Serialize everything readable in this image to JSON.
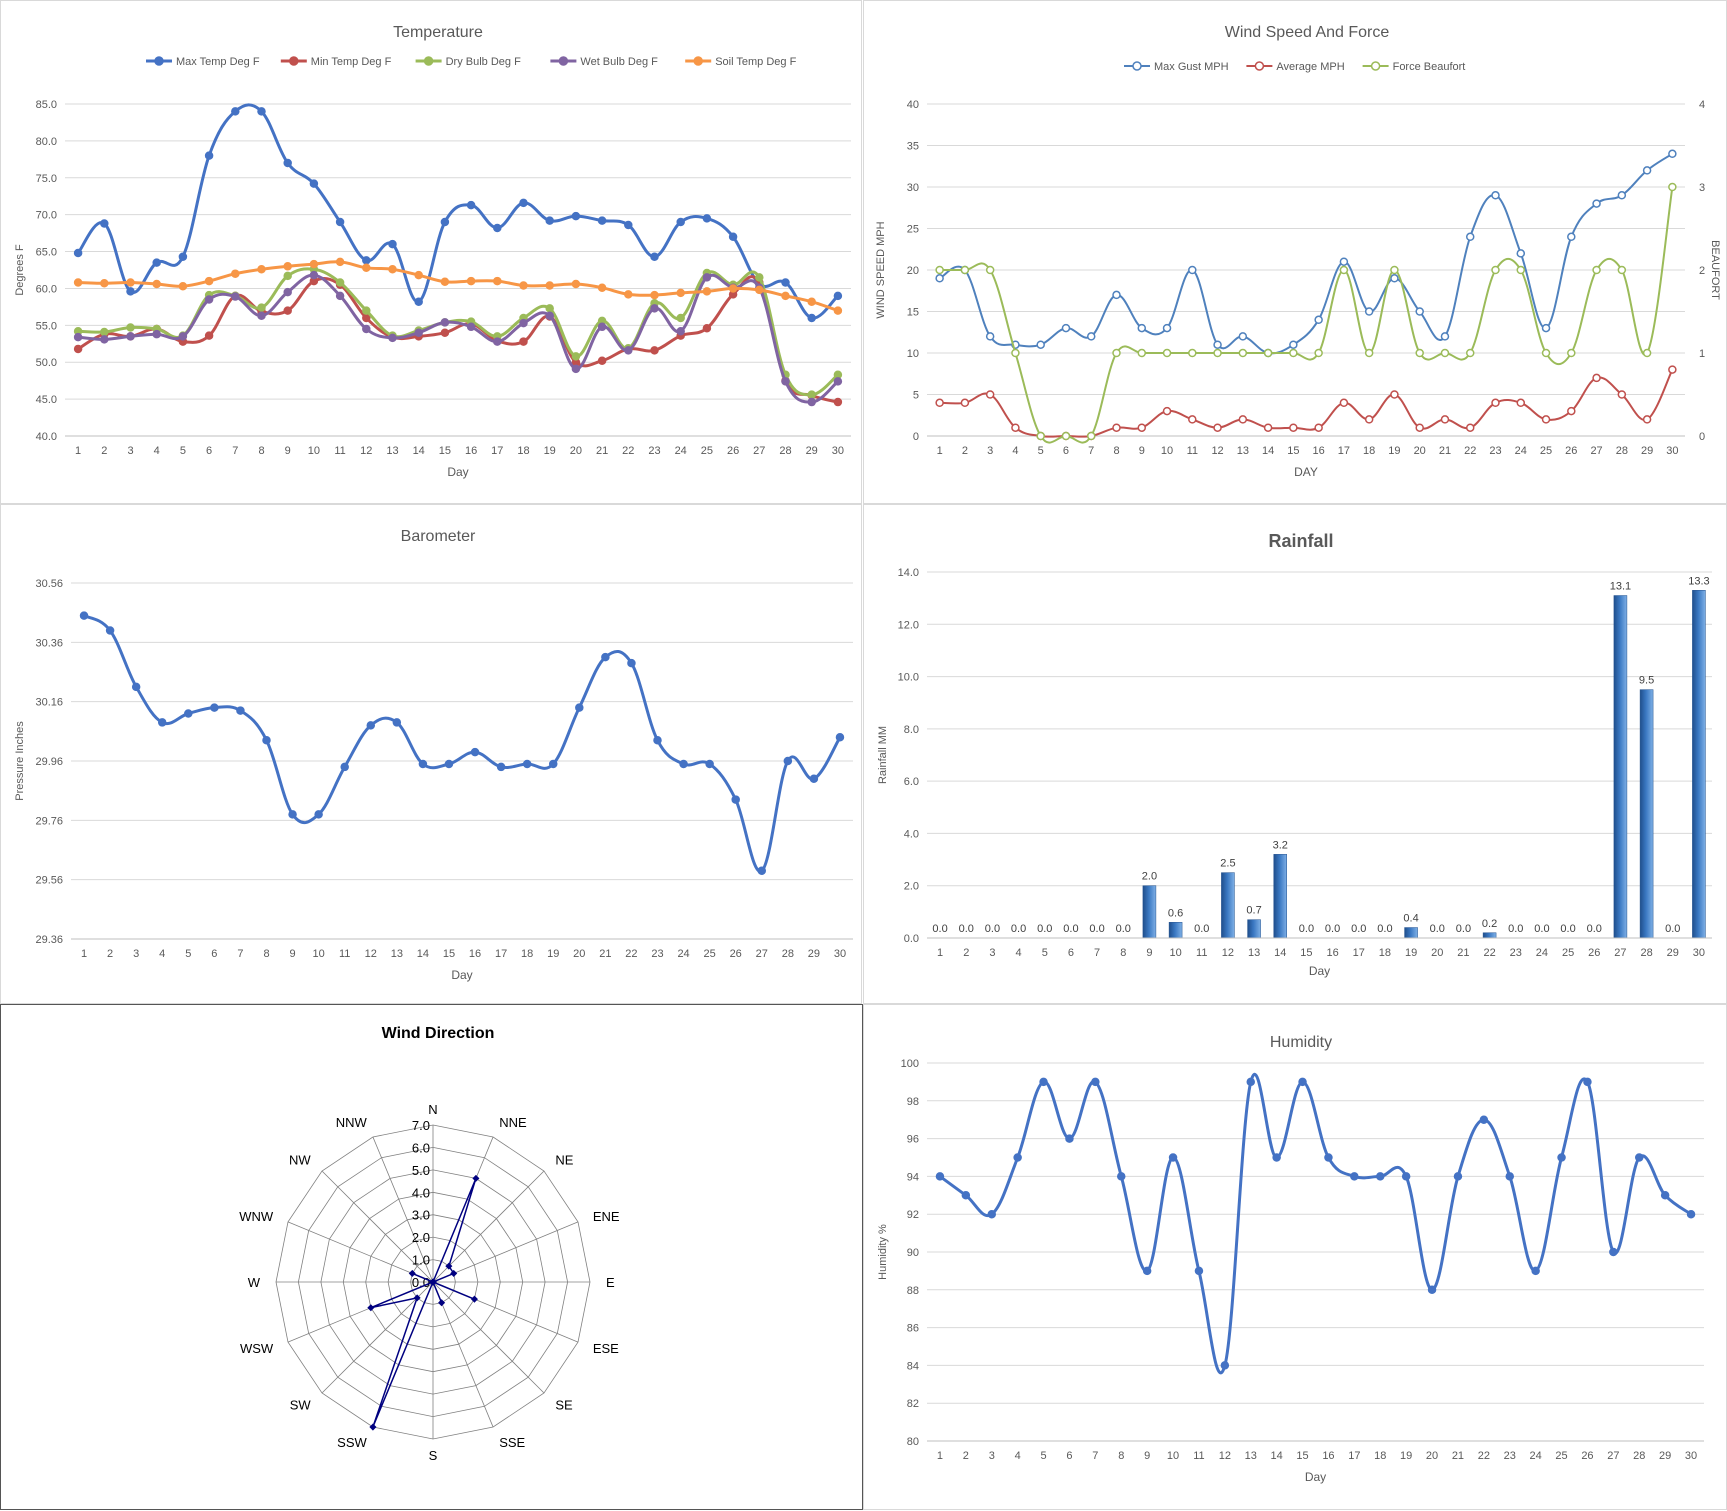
{
  "chart_data": [
    {
      "id": "temp",
      "type": "line",
      "title": "Temperature",
      "xlabel": "Day",
      "ylabel": "Degrees F",
      "ylim": [
        40,
        85
      ],
      "yticks": [
        "40.0",
        "45.0",
        "50.0",
        "55.0",
        "60.0",
        "65.0",
        "70.0",
        "75.0",
        "80.0",
        "85.0"
      ],
      "categories": [
        "1",
        "2",
        "3",
        "4",
        "5",
        "6",
        "7",
        "8",
        "9",
        "10",
        "11",
        "12",
        "13",
        "14",
        "15",
        "16",
        "17",
        "18",
        "19",
        "20",
        "21",
        "22",
        "23",
        "24",
        "25",
        "26",
        "27",
        "28",
        "29",
        "30"
      ],
      "grid": true,
      "legend": "top",
      "series": [
        {
          "name": "Max Temp Deg F",
          "color": "#4472c4",
          "values": [
            64.8,
            68.8,
            59.6,
            63.5,
            64.3,
            78,
            84,
            84,
            77,
            74.2,
            69,
            63.8,
            66,
            58.2,
            69,
            71.3,
            68.2,
            71.6,
            69.2,
            69.8,
            69.2,
            68.6,
            64.3,
            69,
            69.5,
            67,
            60.6,
            60.8,
            56,
            59
          ]
        },
        {
          "name": "Min Temp Deg F",
          "color": "#c0504d",
          "values": [
            51.8,
            53.8,
            53.5,
            54.5,
            52.8,
            53.6,
            59,
            56.9,
            57,
            61,
            60.5,
            56,
            53.4,
            53.5,
            54,
            55.2,
            52.9,
            52.8,
            56.2,
            50,
            50.2,
            51.8,
            51.6,
            53.6,
            54.6,
            59.2,
            60.8,
            47.5,
            45.5,
            44.6
          ]
        },
        {
          "name": "Dry Bulb Deg F",
          "color": "#9bbb59",
          "values": [
            54.2,
            54.1,
            54.7,
            54.5,
            53.6,
            59.1,
            59,
            57.4,
            61.7,
            62.6,
            60.8,
            57,
            53.6,
            54.3,
            55.4,
            55.5,
            53.5,
            56,
            57.3,
            50.8,
            55.6,
            51.9,
            58,
            56,
            62.1,
            60.5,
            61.5,
            48.3,
            45.6,
            48.3
          ]
        },
        {
          "name": "Wet Bulb Deg F",
          "color": "#8064a2",
          "values": [
            53.4,
            53.1,
            53.5,
            53.8,
            53.5,
            58.5,
            58.9,
            56.3,
            59.5,
            61.8,
            59,
            54.5,
            53.3,
            54,
            55.4,
            54.8,
            52.8,
            55.3,
            56.3,
            49.1,
            54.8,
            51.6,
            57.3,
            54.2,
            61.5,
            60.1,
            60.1,
            47.4,
            44.6,
            47.4
          ]
        },
        {
          "name": "Soil Temp Deg F",
          "color": "#f79646",
          "values": [
            60.8,
            60.7,
            60.8,
            60.6,
            60.3,
            61,
            62,
            62.6,
            63,
            63.3,
            63.6,
            62.8,
            62.6,
            61.8,
            60.9,
            61,
            61,
            60.4,
            60.4,
            60.6,
            60.1,
            59.2,
            59.1,
            59.4,
            59.6,
            60,
            59.8,
            59,
            58.2,
            57
          ]
        }
      ]
    },
    {
      "id": "wind",
      "type": "line",
      "title": "Wind Speed And Force",
      "xlabel": "DAY",
      "ylabel": "WIND SPEED MPH",
      "y2label": "BEAUFORT",
      "ylim": [
        0,
        40
      ],
      "y2lim": [
        0,
        4
      ],
      "yticks": [
        "0",
        "5",
        "10",
        "15",
        "20",
        "25",
        "30",
        "35",
        "40"
      ],
      "y2ticks": [
        "0",
        "1",
        "2",
        "3",
        "4"
      ],
      "categories": [
        "1",
        "2",
        "3",
        "4",
        "5",
        "6",
        "7",
        "8",
        "9",
        "10",
        "11",
        "12",
        "13",
        "14",
        "15",
        "16",
        "17",
        "18",
        "19",
        "20",
        "21",
        "22",
        "23",
        "24",
        "25",
        "26",
        "27",
        "28",
        "29",
        "30"
      ],
      "grid": true,
      "legend": "top",
      "series": [
        {
          "name": "Max Gust MPH",
          "color": "#4f81bd",
          "axis": "left",
          "values": [
            19,
            20,
            12,
            11,
            11,
            13,
            12,
            17,
            13,
            13,
            20,
            11,
            12,
            10,
            11,
            14,
            21,
            15,
            19,
            15,
            12,
            24,
            29,
            22,
            13,
            24,
            28,
            29,
            32,
            34
          ]
        },
        {
          "name": "Average MPH",
          "color": "#c0504d",
          "axis": "left",
          "values": [
            4,
            4,
            5,
            1,
            0,
            0,
            0,
            1,
            1,
            3,
            2,
            1,
            2,
            1,
            1,
            1,
            4,
            2,
            5,
            1,
            2,
            1,
            4,
            4,
            2,
            3,
            7,
            5,
            2,
            8
          ]
        },
        {
          "name": "Force Beaufort",
          "color": "#9bbb59",
          "axis": "right",
          "values": [
            2,
            2,
            2,
            1,
            0,
            0,
            0,
            1,
            1,
            1,
            1,
            1,
            1,
            1,
            1,
            1,
            2,
            1,
            2,
            1,
            1,
            1,
            2,
            2,
            1,
            1,
            2,
            2,
            1,
            3
          ]
        }
      ]
    },
    {
      "id": "baro",
      "type": "line",
      "title": "Barometer",
      "xlabel": "Day",
      "ylabel": "Pressure Inches",
      "ylim": [
        29.36,
        30.56
      ],
      "yticks": [
        "29.36",
        "29.56",
        "29.76",
        "29.96",
        "30.16",
        "30.36",
        "30.56"
      ],
      "categories": [
        "1",
        "2",
        "3",
        "4",
        "5",
        "6",
        "7",
        "8",
        "9",
        "10",
        "11",
        "12",
        "13",
        "14",
        "15",
        "16",
        "17",
        "18",
        "19",
        "20",
        "21",
        "22",
        "23",
        "24",
        "25",
        "26",
        "27",
        "28",
        "29",
        "30"
      ],
      "grid": true,
      "series": [
        {
          "name": "",
          "color": "#4472c4",
          "values": [
            30.45,
            30.4,
            30.21,
            30.09,
            30.12,
            30.14,
            30.13,
            30.03,
            29.78,
            29.78,
            29.94,
            30.08,
            30.09,
            29.95,
            29.95,
            29.99,
            29.94,
            29.95,
            29.95,
            30.14,
            30.31,
            30.29,
            30.03,
            29.95,
            29.95,
            29.83,
            29.59,
            29.96,
            29.9,
            30.04
          ]
        }
      ]
    },
    {
      "id": "rain",
      "type": "bar",
      "title": "Rainfall",
      "xlabel": "Day",
      "ylabel": "Rainfall MM",
      "ylim": [
        0,
        14
      ],
      "yticks": [
        "0.0",
        "2.0",
        "4.0",
        "6.0",
        "8.0",
        "10.0",
        "12.0",
        "14.0"
      ],
      "categories": [
        "1",
        "2",
        "3",
        "4",
        "5",
        "6",
        "7",
        "8",
        "9",
        "10",
        "11",
        "12",
        "13",
        "14",
        "15",
        "16",
        "17",
        "18",
        "19",
        "20",
        "21",
        "22",
        "23",
        "24",
        "25",
        "26",
        "27",
        "28",
        "29",
        "30"
      ],
      "grid": true,
      "values": [
        0,
        0,
        0,
        0,
        0,
        0,
        0,
        0,
        2,
        0.6,
        0,
        2.5,
        0.7,
        3.2,
        0,
        0,
        0,
        0,
        0.4,
        0,
        0,
        0.2,
        0,
        0,
        0,
        0,
        13.1,
        9.5,
        0,
        13.3
      ],
      "data_labels": [
        "0.0",
        "0.0",
        "0.0",
        "0.0",
        "0.0",
        "0.0",
        "0.0",
        "0.0",
        "2.0",
        "0.6",
        "0.0",
        "2.5",
        "0.7",
        "3.2",
        "0.0",
        "0.0",
        "0.0",
        "0.0",
        "0.4",
        "0.0",
        "0.0",
        "0.2",
        "0.0",
        "0.0",
        "0.0",
        "0.0",
        "13.1",
        "9.5",
        "0.0",
        "13.3"
      ],
      "color": "#3a78c2"
    },
    {
      "id": "dir",
      "type": "radar",
      "title": "Wind Direction",
      "rlim": [
        0,
        7
      ],
      "rticks": [
        "0.0",
        "1.0",
        "2.0",
        "3.0",
        "4.0",
        "5.0",
        "6.0",
        "7.0"
      ],
      "categories": [
        "N",
        "NNE",
        "NE",
        "ENE",
        "E",
        "ESE",
        "SE",
        "SSE",
        "S",
        "SSW",
        "SW",
        "WSW",
        "W",
        "WNW",
        "NW",
        "NNW"
      ],
      "values": [
        0,
        5,
        1,
        1,
        0,
        2,
        0,
        1,
        0,
        7,
        1,
        3,
        0,
        1,
        0,
        0
      ],
      "color": "#000080"
    },
    {
      "id": "hum",
      "type": "line",
      "title": "Humidity",
      "xlabel": "Day",
      "ylabel": "Humidity %",
      "ylim": [
        80,
        100
      ],
      "yticks": [
        "80",
        "82",
        "84",
        "86",
        "88",
        "90",
        "92",
        "94",
        "96",
        "98",
        "100"
      ],
      "categories": [
        "1",
        "2",
        "3",
        "4",
        "5",
        "6",
        "7",
        "8",
        "9",
        "10",
        "11",
        "12",
        "13",
        "14",
        "15",
        "16",
        "17",
        "18",
        "19",
        "20",
        "21",
        "22",
        "23",
        "24",
        "25",
        "26",
        "27",
        "28",
        "29",
        "30"
      ],
      "grid": true,
      "series": [
        {
          "name": "",
          "color": "#4472c4",
          "values": [
            94,
            93,
            92,
            95,
            99,
            96,
            99,
            94,
            89,
            95,
            89,
            84,
            99,
            95,
            99,
            95,
            94,
            94,
            94,
            88,
            94,
            97,
            94,
            89,
            95,
            99,
            90,
            95,
            93,
            92
          ]
        }
      ]
    }
  ]
}
